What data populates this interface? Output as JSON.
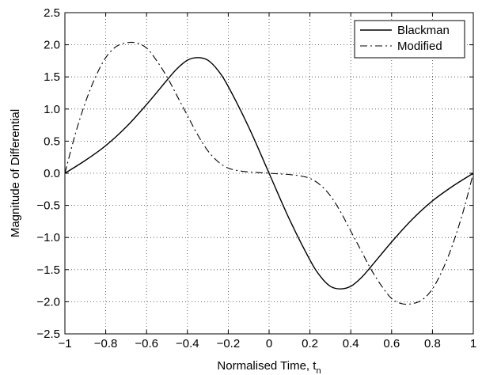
{
  "chart_data": {
    "type": "line",
    "title": "",
    "xlabel": "Normalised Time, t",
    "xlabel_subscript": "n",
    "ylabel": "Magnitude of Differential",
    "xlim": [
      -1,
      1
    ],
    "ylim": [
      -2.5,
      2.5
    ],
    "x_ticks": [
      -1,
      -0.8,
      -0.6,
      -0.4,
      -0.2,
      0,
      0.2,
      0.4,
      0.6,
      0.8,
      1
    ],
    "x_tick_labels": [
      "−1",
      "−0.8",
      "−0.6",
      "−0.4",
      "−0.2",
      "0",
      "0.2",
      "0.4",
      "0.6",
      "0.8",
      "1"
    ],
    "y_ticks": [
      -2.5,
      -2.0,
      -1.5,
      -1.0,
      -0.5,
      0.0,
      0.5,
      1.0,
      1.5,
      2.0,
      2.5
    ],
    "y_tick_labels": [
      "−2.5",
      "−2.0",
      "−1.5",
      "−1.0",
      "−0.5",
      "0.0",
      "0.5",
      "1.0",
      "1.5",
      "2.0",
      "2.5"
    ],
    "grid": true,
    "legend_position": "top-right",
    "series": [
      {
        "name": "Blackman",
        "line_style": "solid",
        "color": "#000000",
        "x": [
          -1.0,
          -0.9,
          -0.8,
          -0.7,
          -0.6,
          -0.5,
          -0.45,
          -0.4,
          -0.35,
          -0.3,
          -0.25,
          -0.2,
          -0.1,
          0.0,
          0.1,
          0.2,
          0.25,
          0.3,
          0.35,
          0.4,
          0.45,
          0.5,
          0.6,
          0.7,
          0.8,
          0.9,
          1.0
        ],
        "y": [
          0.0,
          0.2,
          0.43,
          0.72,
          1.07,
          1.45,
          1.63,
          1.76,
          1.8,
          1.76,
          1.6,
          1.35,
          0.72,
          0.0,
          -0.72,
          -1.35,
          -1.6,
          -1.76,
          -1.8,
          -1.76,
          -1.63,
          -1.45,
          -1.07,
          -0.72,
          -0.43,
          -0.2,
          0.0
        ]
      },
      {
        "name": "Modified",
        "line_style": "dashdot",
        "color": "#000000",
        "x": [
          -1.0,
          -0.95,
          -0.9,
          -0.85,
          -0.8,
          -0.75,
          -0.7,
          -0.65,
          -0.6,
          -0.55,
          -0.5,
          -0.45,
          -0.4,
          -0.35,
          -0.3,
          -0.25,
          -0.2,
          -0.15,
          -0.1,
          -0.05,
          0.0,
          0.05,
          0.1,
          0.15,
          0.2,
          0.25,
          0.3,
          0.35,
          0.4,
          0.45,
          0.5,
          0.55,
          0.6,
          0.65,
          0.7,
          0.75,
          0.8,
          0.85,
          0.9,
          0.95,
          1.0
        ],
        "y": [
          0.0,
          0.6,
          1.1,
          1.5,
          1.8,
          1.97,
          2.03,
          2.03,
          1.95,
          1.75,
          1.5,
          1.2,
          0.9,
          0.6,
          0.35,
          0.18,
          0.08,
          0.04,
          0.02,
          0.01,
          0.0,
          -0.01,
          -0.02,
          -0.04,
          -0.08,
          -0.18,
          -0.35,
          -0.6,
          -0.9,
          -1.2,
          -1.5,
          -1.75,
          -1.95,
          -2.03,
          -2.03,
          -1.97,
          -1.8,
          -1.5,
          -1.1,
          -0.6,
          0.0
        ]
      }
    ]
  }
}
